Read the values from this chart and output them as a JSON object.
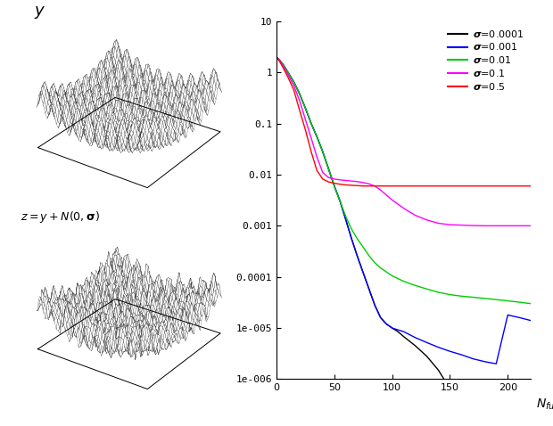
{
  "plot_xlim": [
    0,
    220
  ],
  "plot_ylim_log": [
    1e-06,
    10
  ],
  "yticks": [
    1e-06,
    1e-05,
    0.0001,
    0.001,
    0.01,
    0.1,
    1,
    10
  ],
  "ytick_labels": [
    "1e-006",
    "1e-005",
    "0.0001",
    "0.001",
    "0.01",
    "0.1",
    "1",
    "10"
  ],
  "xticks": [
    0,
    50,
    100,
    150,
    200
  ],
  "surface_n": 60,
  "surface_range": 5.0,
  "noise_sigma": 4.0,
  "noise_seed": 42,
  "lines": [
    {
      "label": "σ=0.0001",
      "color": "black",
      "x": [
        0,
        3,
        6,
        10,
        15,
        20,
        25,
        30,
        35,
        40,
        45,
        50,
        55,
        60,
        65,
        70,
        75,
        80,
        85,
        90,
        95,
        100,
        105,
        110,
        120,
        130,
        140,
        150
      ],
      "y": [
        2.0,
        1.7,
        1.4,
        1.0,
        0.65,
        0.38,
        0.2,
        0.1,
        0.055,
        0.028,
        0.013,
        0.006,
        0.003,
        0.0013,
        0.00055,
        0.00025,
        0.00012,
        5.8e-05,
        2.8e-05,
        1.6e-05,
        1.2e-05,
        1e-05,
        8.5e-06,
        6.8e-06,
        4.5e-06,
        2.8e-06,
        1.5e-06,
        6.5e-07
      ]
    },
    {
      "label": "σ=0.001",
      "color": "blue",
      "x": [
        0,
        3,
        6,
        10,
        15,
        20,
        25,
        30,
        35,
        40,
        45,
        50,
        55,
        60,
        65,
        70,
        75,
        80,
        85,
        90,
        95,
        100,
        110,
        120,
        130,
        140,
        150,
        160,
        170,
        180,
        190,
        200,
        210,
        220
      ],
      "y": [
        2.0,
        1.7,
        1.4,
        1.0,
        0.65,
        0.38,
        0.2,
        0.1,
        0.055,
        0.028,
        0.013,
        0.006,
        0.003,
        0.0013,
        0.00055,
        0.00025,
        0.00012,
        5.8e-05,
        2.8e-05,
        1.6e-05,
        1.2e-05,
        1e-05,
        8.5e-06,
        6.5e-06,
        5.2e-06,
        4.2e-06,
        3.5e-06,
        3e-06,
        2.5e-06,
        2.2e-06,
        2e-06,
        1.8e-05,
        1.6e-05,
        1.4e-05
      ]
    },
    {
      "label": "σ=0.01",
      "color": "#00cc00",
      "x": [
        0,
        3,
        6,
        10,
        15,
        20,
        25,
        30,
        35,
        40,
        45,
        50,
        55,
        60,
        65,
        70,
        75,
        80,
        85,
        90,
        95,
        100,
        110,
        120,
        130,
        140,
        150,
        160,
        170,
        180,
        190,
        200,
        210,
        220
      ],
      "y": [
        2.0,
        1.7,
        1.4,
        1.0,
        0.65,
        0.38,
        0.2,
        0.1,
        0.055,
        0.028,
        0.013,
        0.006,
        0.003,
        0.0015,
        0.00085,
        0.00055,
        0.00038,
        0.00026,
        0.00019,
        0.00015,
        0.000125,
        0.000105,
        8.2e-05,
        6.8e-05,
        5.8e-05,
        5e-05,
        4.5e-05,
        4.2e-05,
        4e-05,
        3.8e-05,
        3.6e-05,
        3.4e-05,
        3.2e-05,
        3e-05
      ]
    },
    {
      "label": "σ=0.1",
      "color": "magenta",
      "x": [
        0,
        3,
        6,
        10,
        15,
        20,
        25,
        30,
        35,
        40,
        45,
        50,
        55,
        60,
        65,
        70,
        75,
        80,
        85,
        90,
        95,
        100,
        110,
        120,
        130,
        140,
        150,
        160,
        170,
        180,
        190,
        200,
        210,
        220
      ],
      "y": [
        2.0,
        1.7,
        1.3,
        0.9,
        0.55,
        0.28,
        0.12,
        0.052,
        0.022,
        0.011,
        0.0088,
        0.0082,
        0.0079,
        0.0077,
        0.0075,
        0.0073,
        0.007,
        0.0066,
        0.006,
        0.005,
        0.004,
        0.0032,
        0.0022,
        0.0016,
        0.0013,
        0.00112,
        0.00105,
        0.00103,
        0.00101,
        0.001,
        0.001,
        0.001,
        0.001,
        0.001
      ]
    },
    {
      "label": "σ=0.5",
      "color": "red",
      "x": [
        0,
        3,
        6,
        10,
        15,
        20,
        25,
        30,
        35,
        40,
        45,
        50,
        55,
        60,
        65,
        70,
        75,
        80,
        85,
        90,
        100,
        110,
        120,
        130,
        140,
        150,
        160,
        170,
        180,
        190,
        200,
        210,
        220
      ],
      "y": [
        2.0,
        1.6,
        1.2,
        0.8,
        0.45,
        0.18,
        0.075,
        0.028,
        0.012,
        0.0082,
        0.0072,
        0.0068,
        0.0065,
        0.0063,
        0.0062,
        0.0061,
        0.006,
        0.006,
        0.006,
        0.006,
        0.006,
        0.006,
        0.006,
        0.006,
        0.006,
        0.006,
        0.006,
        0.006,
        0.006,
        0.006,
        0.006,
        0.006,
        0.006
      ]
    }
  ]
}
